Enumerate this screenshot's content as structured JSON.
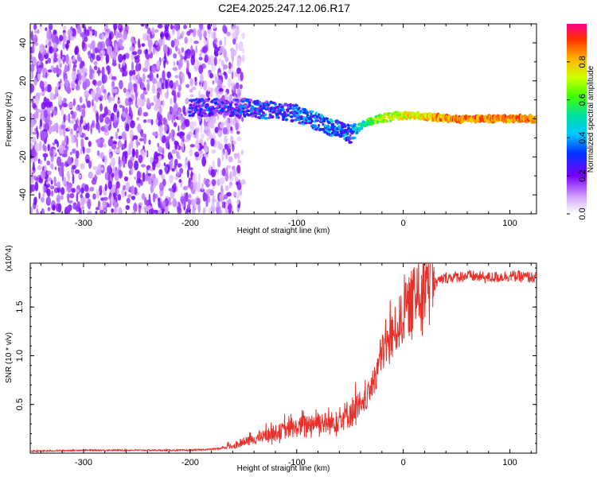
{
  "figure_title": "C2E4.2025.247.12.06.R17",
  "colors": {
    "line": "#e8302a",
    "frame": "#000000"
  },
  "chart_data": [
    {
      "type": "heatmap",
      "xlabel": "Height of straight line (km)",
      "ylabel": "Frequency (Hz)",
      "xlim": [
        -350,
        125
      ],
      "ylim": [
        -50,
        50
      ],
      "xticks": [
        -300,
        -200,
        -100,
        0,
        100
      ],
      "yticks": [
        -40,
        -20,
        0,
        20,
        40
      ],
      "colorbar": {
        "label": "Normalized spectral amplitude",
        "range": [
          0,
          1
        ],
        "ticks": [
          "0.0",
          "0.2",
          "0.4",
          "0.6",
          "0.8"
        ],
        "colormap": "rainbow"
      },
      "ridge": [
        {
          "x": -200,
          "y": 6,
          "amp": 0.35
        },
        {
          "x": -150,
          "y": 6,
          "amp": 0.4
        },
        {
          "x": -100,
          "y": 3,
          "amp": 0.45
        },
        {
          "x": -70,
          "y": -4,
          "amp": 0.5
        },
        {
          "x": -50,
          "y": -8,
          "amp": 0.45
        },
        {
          "x": -40,
          "y": -4,
          "amp": 0.6
        },
        {
          "x": -25,
          "y": 0,
          "amp": 0.75
        },
        {
          "x": 0,
          "y": 2,
          "amp": 0.85
        },
        {
          "x": 50,
          "y": 0,
          "amp": 0.95
        },
        {
          "x": 125,
          "y": 0,
          "amp": 0.95
        }
      ]
    },
    {
      "type": "line",
      "xlabel": "Height of straight line (km)",
      "ylabel": "SNR (10 * v/v)",
      "y_multiplier": "(x10^4)",
      "xlim": [
        -350,
        125
      ],
      "ylim": [
        0,
        1.95
      ],
      "xticks": [
        -300,
        -200,
        -100,
        0,
        100
      ],
      "yticks": [
        "0.5",
        "1.0",
        "1.5"
      ],
      "series": [
        {
          "x": [
            -350,
            -300,
            -250,
            -200,
            -180,
            -160,
            -140,
            -120,
            -100,
            -90,
            -80,
            -70,
            -60,
            -50,
            -40,
            -35,
            -30,
            -20,
            -10,
            -5,
            0,
            10,
            20,
            30,
            40,
            60,
            80,
            100,
            125
          ],
          "values": [
            0.02,
            0.03,
            0.03,
            0.03,
            0.04,
            0.06,
            0.12,
            0.18,
            0.22,
            0.25,
            0.28,
            0.25,
            0.3,
            0.35,
            0.4,
            0.5,
            0.6,
            0.95,
            1.1,
            1.2,
            1.3,
            1.45,
            1.6,
            1.75,
            1.8,
            1.82,
            1.8,
            1.82,
            1.8
          ]
        }
      ]
    }
  ]
}
